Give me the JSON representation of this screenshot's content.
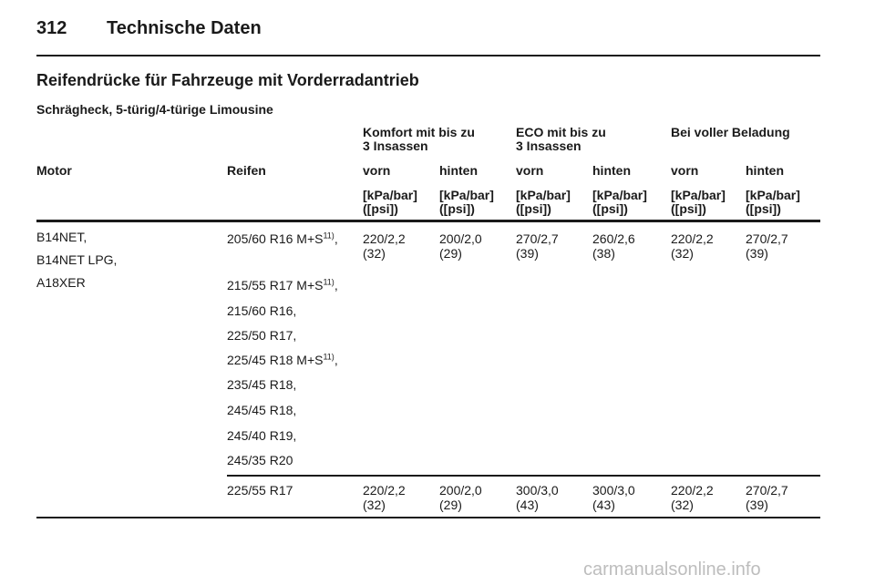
{
  "header": {
    "page_number": "312",
    "title": "Technische Daten"
  },
  "section_title": "Reifendrücke für Fahrzeuge mit Vorderradantrieb",
  "subsection_title": "Schrägheck, 5-türig/4-türige Limousine",
  "table": {
    "group_headers": [
      [
        "Komfort mit bis zu",
        "3 Insassen"
      ],
      [
        "ECO mit bis zu",
        "3 Insassen"
      ],
      [
        "Bei voller Beladung"
      ]
    ],
    "col_motor": "Motor",
    "col_reifen": "Reifen",
    "sub_headers": [
      "vorn",
      "hinten",
      "vorn",
      "hinten",
      "vorn",
      "hinten"
    ],
    "unit_line1": "[kPa/bar]",
    "unit_line2": "([psi])",
    "motors": [
      "B14NET,",
      "B14NET LPG,",
      "A18XER"
    ],
    "footnote": "11)",
    "tires_group1": [
      {
        "size": "205/60 R16 M+S",
        "footnote": true
      },
      {
        "size": "215/55 R17 M+S",
        "footnote": true
      },
      {
        "size": "215/60 R16,",
        "footnote": false
      },
      {
        "size": "225/50 R17,",
        "footnote": false
      },
      {
        "size": "225/45 R18 M+S",
        "footnote": true
      },
      {
        "size": "235/45 R18,",
        "footnote": false
      },
      {
        "size": "245/45 R18,",
        "footnote": false
      },
      {
        "size": "245/40 R19,",
        "footnote": false
      },
      {
        "size": "245/35 R20",
        "footnote": false
      }
    ],
    "pressures_group1": [
      [
        "220/2,2",
        "(32)"
      ],
      [
        "200/2,0",
        "(29)"
      ],
      [
        "270/2,7",
        "(39)"
      ],
      [
        "260/2,6",
        "(38)"
      ],
      [
        "220/2,2",
        "(32)"
      ],
      [
        "270/2,7",
        "(39)"
      ]
    ],
    "tire_group2": "225/55 R17",
    "pressures_group2": [
      [
        "220/2,2",
        "(32)"
      ],
      [
        "200/2,0",
        "(29)"
      ],
      [
        "300/3,0",
        "(43)"
      ],
      [
        "300/3,0",
        "(43)"
      ],
      [
        "220/2,2",
        "(32)"
      ],
      [
        "270/2,7",
        "(39)"
      ]
    ]
  },
  "watermark": "carmanualsonline.info"
}
